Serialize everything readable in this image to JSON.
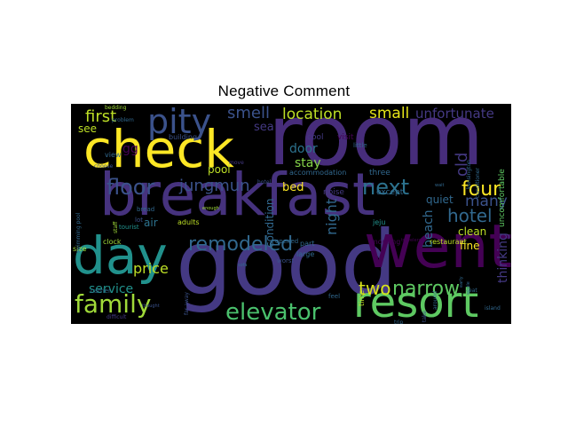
{
  "title": "Negative Comment",
  "words": [
    {
      "id": "room",
      "text": "room",
      "color": "#472d7b"
    },
    {
      "id": "breakfast",
      "text": "breakfast",
      "color": "#46327e"
    },
    {
      "id": "good",
      "text": "good",
      "color": "#443983"
    },
    {
      "id": "check",
      "text": "check",
      "color": "#fde725"
    },
    {
      "id": "went",
      "text": "went",
      "color": "#440154"
    },
    {
      "id": "day",
      "text": "day",
      "color": "#21918c"
    },
    {
      "id": "resort",
      "text": "resort",
      "color": "#5ec962"
    },
    {
      "id": "pity",
      "text": "pity",
      "color": "#3b528b"
    },
    {
      "id": "family",
      "text": "family",
      "color": "#a0da39"
    },
    {
      "id": "elevator",
      "text": "elevator",
      "color": "#4ac16d"
    },
    {
      "id": "remodeled",
      "text": "remodeled",
      "color": "#31688e"
    },
    {
      "id": "floor",
      "text": "floor",
      "color": "#3b528b"
    },
    {
      "id": "jungmun",
      "text": "jungmun",
      "color": "#3b528b"
    },
    {
      "id": "next",
      "text": "next",
      "color": "#2c728e"
    },
    {
      "id": "four",
      "text": "four",
      "color": "#fde725"
    },
    {
      "id": "hotel",
      "text": "hotel",
      "color": "#31688e"
    },
    {
      "id": "narrow",
      "text": "narrow",
      "color": "#5ec962"
    },
    {
      "id": "two",
      "text": "two",
      "color": "#d8e219"
    },
    {
      "id": "first",
      "text": "first",
      "color": "#bddf26"
    },
    {
      "id": "smell",
      "text": "smell",
      "color": "#3b528b"
    },
    {
      "id": "location",
      "text": "location",
      "color": "#bddf26"
    },
    {
      "id": "small",
      "text": "small",
      "color": "#e5e419"
    },
    {
      "id": "unfortunate",
      "text": "unfortunate",
      "color": "#443983"
    },
    {
      "id": "price",
      "text": "price",
      "color": "#bddf26"
    },
    {
      "id": "many",
      "text": "many",
      "color": "#3b528b"
    },
    {
      "id": "service",
      "text": "service",
      "color": "#21918c"
    },
    {
      "id": "bed",
      "text": "bed",
      "color": "#fde725"
    },
    {
      "id": "stay",
      "text": "stay",
      "color": "#86d549"
    },
    {
      "id": "door",
      "text": "door",
      "color": "#2c728e"
    },
    {
      "id": "old",
      "text": "old",
      "color": "#443983"
    },
    {
      "id": "sea",
      "text": "sea",
      "color": "#443983"
    },
    {
      "id": "see",
      "text": "see",
      "color": "#bddf26"
    },
    {
      "id": "pool",
      "text": "pool",
      "color": "#bddf26"
    },
    {
      "id": "air",
      "text": "air",
      "color": "#2c728e"
    },
    {
      "id": "night",
      "text": "night",
      "color": "#31688e"
    },
    {
      "id": "beach",
      "text": "beach",
      "color": "#31688e"
    },
    {
      "id": "clean",
      "text": "clean",
      "color": "#bddf26"
    },
    {
      "id": "fine",
      "text": "fine",
      "color": "#fde725"
    },
    {
      "id": "quiet",
      "text": "quiet",
      "color": "#31688e"
    },
    {
      "id": "thinking",
      "text": "thinking",
      "color": "#443983"
    },
    {
      "id": "condition",
      "text": "condition",
      "color": "#31688e"
    },
    {
      "id": "uncomfortable",
      "text": "uncomfortable",
      "color": "#5ec962"
    },
    {
      "id": "cool",
      "text": "cool",
      "color": "#443983"
    },
    {
      "id": "visit",
      "text": "visit",
      "color": "#440154"
    },
    {
      "id": "view",
      "text": "view",
      "color": "#31688e"
    },
    {
      "id": "building",
      "text": "building",
      "color": "#3b528b"
    },
    {
      "id": "noise",
      "text": "noise",
      "color": "#443983"
    },
    {
      "id": "accommodation",
      "text": "accommodation",
      "color": "#31688e"
    },
    {
      "id": "except",
      "text": "except",
      "color": "#31688e"
    },
    {
      "id": "three",
      "text": "three",
      "color": "#31688e"
    },
    {
      "id": "clock",
      "text": "clock",
      "color": "#a0da39"
    },
    {
      "id": "adults",
      "text": "adults",
      "color": "#bddf26"
    },
    {
      "id": "part",
      "text": "part",
      "color": "#31688e"
    },
    {
      "id": "large",
      "text": "large",
      "color": "#31688e"
    },
    {
      "id": "morning",
      "text": "morning",
      "color": "#440154"
    },
    {
      "id": "restaurant",
      "text": "restaurant",
      "color": "#bddf26"
    },
    {
      "id": "worst",
      "text": "worst",
      "color": "#3b528b"
    },
    {
      "id": "feel",
      "text": "feel",
      "color": "#31688e"
    },
    {
      "id": "time",
      "text": "time",
      "color": "#bddf26"
    },
    {
      "id": "bread",
      "text": "bread",
      "color": "#31688e"
    },
    {
      "id": "lot",
      "text": "lot",
      "color": "#3b528b"
    },
    {
      "id": "tourist",
      "text": "tourist",
      "color": "#21918c"
    },
    {
      "id": "size",
      "text": "size",
      "color": "#a0da39"
    },
    {
      "id": "carrier",
      "text": "carrier",
      "color": "#31688e"
    },
    {
      "id": "opened",
      "text": "opened",
      "color": "#31688e"
    },
    {
      "id": "little",
      "text": "little",
      "color": "#31688e"
    },
    {
      "id": "jeju",
      "text": "jeju",
      "color": "#21918c"
    },
    {
      "id": "gg",
      "text": "gg",
      "color": "#440154"
    },
    {
      "id": "bedding",
      "text": "bedding",
      "color": "#a0da39"
    },
    {
      "id": "problem",
      "text": "problem",
      "color": "#31688e"
    },
    {
      "id": "choose",
      "text": "choose",
      "color": "#3b528b"
    },
    {
      "id": "move",
      "text": "move",
      "color": "#443983"
    },
    {
      "id": "kensington",
      "text": "kensington",
      "color": "#31688e"
    },
    {
      "id": "conditioner",
      "text": "conditioner",
      "color": "#31688e"
    },
    {
      "id": "staff",
      "text": "staff",
      "color": "#a0da39"
    },
    {
      "id": "enough",
      "text": "enough",
      "color": "#a0da39"
    },
    {
      "id": "far-away",
      "text": "far away",
      "color": "#3b528b"
    },
    {
      "id": "difficult",
      "text": "difficult",
      "color": "#443983"
    },
    {
      "id": "trip",
      "text": "trip",
      "color": "#31688e"
    },
    {
      "id": "island",
      "text": "island",
      "color": "#31688e"
    },
    {
      "id": "eat",
      "text": "eat",
      "color": "#31688e"
    },
    {
      "id": "swimming-pool",
      "text": "swimming pool",
      "color": "#31688e"
    },
    {
      "id": "wait",
      "text": "wait",
      "color": "#31688e"
    },
    {
      "id": "hotel-small",
      "text": "hotel",
      "color": "#3b528b"
    },
    {
      "id": "sofa",
      "text": "sofa",
      "color": "#31688e"
    },
    {
      "id": "take",
      "text": "take",
      "color": "#3b528b"
    },
    {
      "id": "around",
      "text": "around",
      "color": "#31688e"
    },
    {
      "id": "early",
      "text": "early",
      "color": "#31688e"
    },
    {
      "id": "whole",
      "text": "whole",
      "color": "#31688e"
    },
    {
      "id": "travelers",
      "text": "travelers",
      "color": "#440154"
    },
    {
      "id": "thought",
      "text": "thought",
      "color": "#3b528b"
    }
  ]
}
